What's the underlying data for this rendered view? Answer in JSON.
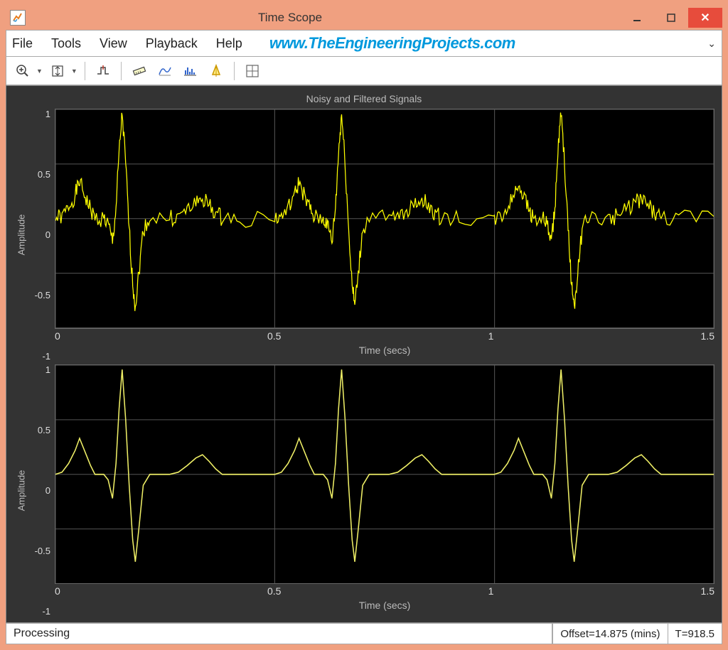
{
  "window": {
    "title": "Time Scope",
    "menus": [
      "File",
      "Tools",
      "View",
      "Playback",
      "Help"
    ],
    "watermark": "www.TheEngineeringProjects.com"
  },
  "toolbar": {
    "icons": [
      "zoom-in",
      "autoscale",
      "triggers",
      "measure",
      "stats",
      "spectrum",
      "cursor",
      "layout"
    ]
  },
  "scope": {
    "title": "Noisy and Filtered Signals",
    "xlabel": "Time (secs)",
    "ylabel": "Amplitude",
    "ylim": [
      -1,
      1
    ],
    "xlim": [
      0,
      1.5
    ],
    "yticks": [
      "1",
      "0.5",
      "0",
      "-0.5",
      "-1"
    ],
    "xticks": [
      "0",
      "0.5",
      "1",
      "1.5"
    ],
    "grid_x": [
      0,
      0.333,
      0.667,
      1.0
    ],
    "grid_y": [
      0,
      0.25,
      0.5,
      0.75,
      1.0
    ],
    "colors": {
      "background": "#333333",
      "plot_bg": "#000000",
      "grid": "#555555",
      "text": "#bbbbbb",
      "noisy_signal": "#ffff00",
      "clean_signal": "#eeee66"
    },
    "clean_signal_period": {
      "comment": "ECG-like waveform one period, x in [0,0.5], y in [-1,1]",
      "points": [
        [
          0.0,
          0.0
        ],
        [
          0.015,
          0.02
        ],
        [
          0.03,
          0.1
        ],
        [
          0.045,
          0.22
        ],
        [
          0.055,
          0.33
        ],
        [
          0.068,
          0.2
        ],
        [
          0.08,
          0.08
        ],
        [
          0.09,
          0.0
        ],
        [
          0.11,
          0.0
        ],
        [
          0.12,
          -0.05
        ],
        [
          0.13,
          -0.22
        ],
        [
          0.138,
          0.1
        ],
        [
          0.145,
          0.6
        ],
        [
          0.152,
          0.96
        ],
        [
          0.16,
          0.5
        ],
        [
          0.168,
          -0.1
        ],
        [
          0.176,
          -0.6
        ],
        [
          0.182,
          -0.8
        ],
        [
          0.19,
          -0.5
        ],
        [
          0.2,
          -0.1
        ],
        [
          0.215,
          0.0
        ],
        [
          0.26,
          0.0
        ],
        [
          0.28,
          0.02
        ],
        [
          0.3,
          0.08
        ],
        [
          0.32,
          0.15
        ],
        [
          0.335,
          0.18
        ],
        [
          0.35,
          0.12
        ],
        [
          0.365,
          0.05
        ],
        [
          0.38,
          0.0
        ],
        [
          0.42,
          0.0
        ],
        [
          0.5,
          0.0
        ]
      ]
    },
    "noise_amplitude": 0.08,
    "periods": 3
  },
  "status": {
    "left": "Processing",
    "offset": "Offset=14.875 (mins)",
    "time": "T=918.5"
  }
}
